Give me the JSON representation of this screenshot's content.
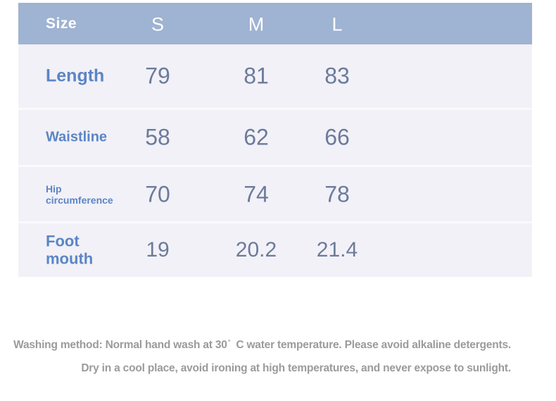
{
  "table": {
    "header": {
      "label": "Size",
      "columns": [
        "S",
        "M",
        "L"
      ]
    },
    "rows": [
      {
        "label": "Length",
        "values": [
          "79",
          "81",
          "83"
        ]
      },
      {
        "label": "Waistline",
        "values": [
          "58",
          "62",
          "66"
        ]
      },
      {
        "label": "Hip circumference",
        "values": [
          "70",
          "74",
          "78"
        ]
      },
      {
        "label": "Foot mouth",
        "values": [
          "19",
          "20.2",
          "21.4"
        ]
      }
    ]
  },
  "care": {
    "line1_pre": "Washing method: Normal hand wash at 30",
    "degree": "°",
    "line1_post": "C water temperature. Please avoid alkaline detergents.",
    "line2": "Dry in a cool place, avoid ironing at high temperatures, and never expose to sunlight."
  },
  "colors": {
    "header_bg": "#9fb3d2",
    "body_bg": "#f2f1f7",
    "divider": "#fafafc",
    "label_text": "#5b85c6",
    "value_text": "#6b7b9b",
    "header_text": "#ffffff",
    "care_text": "#9b9a9c"
  }
}
